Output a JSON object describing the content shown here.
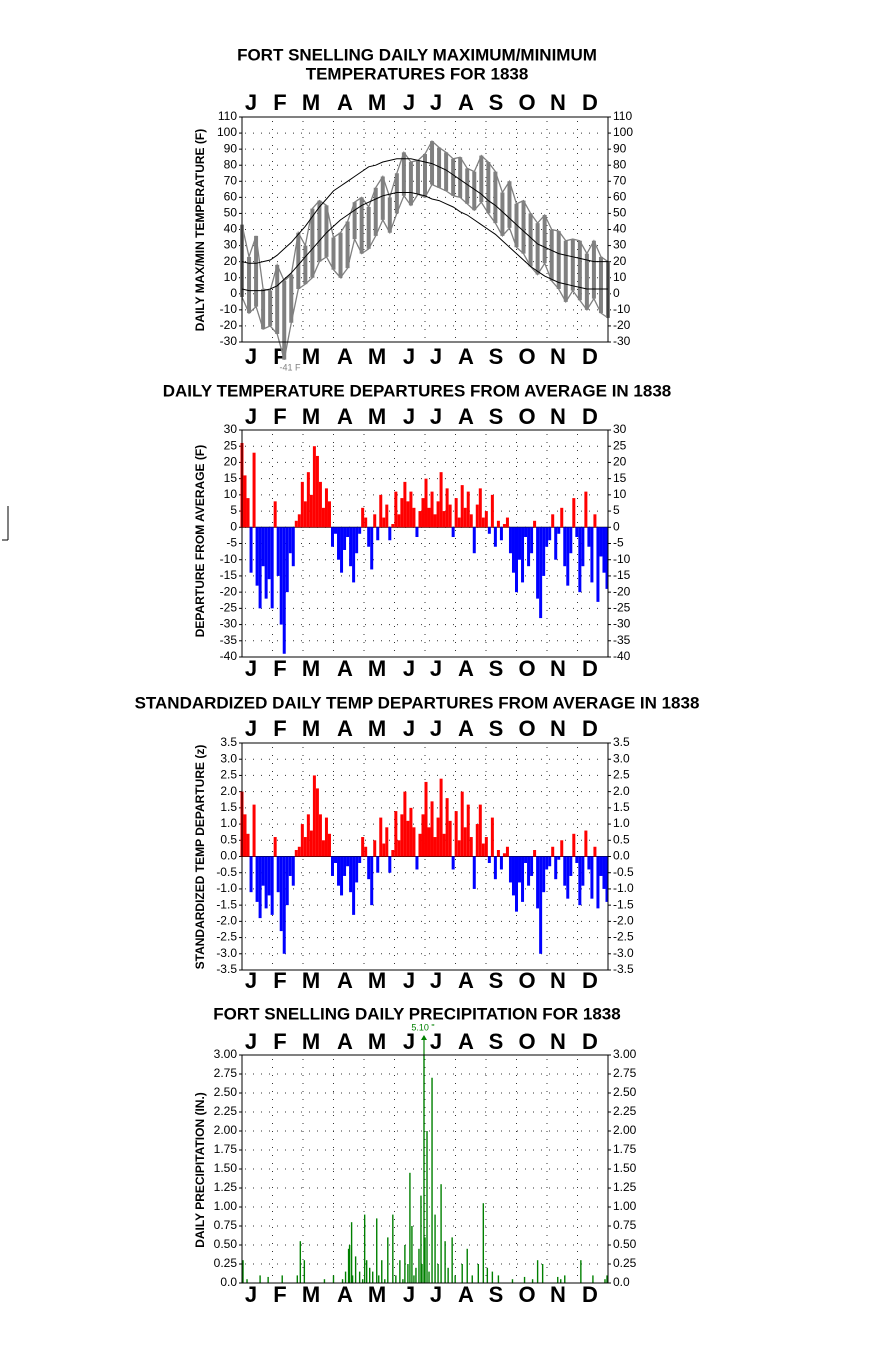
{
  "colors": {
    "temperature_range": "#808080",
    "normal_lines": "#000000",
    "positive_departure": "#ff0000",
    "negative_departure": "#0000ff",
    "precipitation": "#008000",
    "grid": "#333333"
  },
  "months": [
    "J",
    "F",
    "M",
    "A",
    "M",
    "J",
    "J",
    "A",
    "S",
    "O",
    "N",
    "D"
  ],
  "chart_data": [
    {
      "type": "area",
      "title": "FORT SNELLING DAILY MAXIMUM/MINIMUM\nTEMPERATURES FOR 1838",
      "ylabel": "DAILY MAX/MIN TEMPERATURE (F)",
      "y_ticks": [
        "110",
        "100",
        "90",
        "80",
        "70",
        "60",
        "50",
        "40",
        "30",
        "20",
        "10",
        "0",
        "-10",
        "-20",
        "-30"
      ],
      "ylim": [
        -30,
        110
      ],
      "x_unit": "day of year",
      "x": [
        1,
        8,
        15,
        22,
        29,
        36,
        43,
        50,
        57,
        64,
        71,
        78,
        85,
        92,
        99,
        106,
        113,
        120,
        127,
        134,
        141,
        148,
        155,
        162,
        169,
        176,
        183,
        190,
        197,
        204,
        211,
        218,
        225,
        232,
        239,
        246,
        253,
        260,
        267,
        274,
        281,
        288,
        295,
        302,
        309,
        316,
        323,
        330,
        337,
        344,
        351,
        358,
        365
      ],
      "series": [
        {
          "name": "Daily maximum",
          "values": [
            43,
            23,
            36,
            3,
            2,
            18,
            8,
            12,
            38,
            30,
            53,
            58,
            55,
            35,
            38,
            45,
            57,
            60,
            54,
            66,
            73,
            60,
            75,
            88,
            82,
            83,
            87,
            95,
            91,
            88,
            84,
            85,
            78,
            76,
            86,
            82,
            76,
            63,
            70,
            56,
            58,
            50,
            44,
            49,
            40,
            39,
            33,
            34,
            33,
            25,
            33,
            23,
            20
          ]
        },
        {
          "name": "Daily minimum",
          "values": [
            -2,
            -12,
            -8,
            -22,
            -20,
            -25,
            -41,
            -18,
            3,
            6,
            10,
            20,
            23,
            15,
            10,
            16,
            34,
            25,
            28,
            36,
            46,
            38,
            50,
            61,
            55,
            62,
            60,
            68,
            66,
            64,
            61,
            60,
            56,
            52,
            57,
            50,
            44,
            36,
            41,
            29,
            25,
            17,
            12,
            19,
            8,
            3,
            -5,
            2,
            -4,
            -10,
            -3,
            -12,
            -15
          ]
        },
        {
          "name": "Normal maximum",
          "values": [
            20,
            19,
            19,
            20,
            21,
            24,
            28,
            32,
            37,
            42,
            48,
            54,
            59,
            64,
            67,
            70,
            73,
            76,
            79,
            80,
            82,
            83,
            84,
            84,
            84,
            83,
            82,
            81,
            79,
            77,
            74,
            71,
            68,
            65,
            62,
            58,
            55,
            51,
            47,
            43,
            39,
            35,
            31,
            29,
            27,
            25,
            24,
            23,
            22,
            21,
            20,
            20,
            20
          ]
        },
        {
          "name": "Normal minimum",
          "values": [
            3,
            2,
            2,
            2,
            3,
            5,
            9,
            13,
            18,
            23,
            28,
            33,
            38,
            42,
            46,
            49,
            52,
            55,
            57,
            59,
            61,
            62,
            63,
            63,
            63,
            62,
            61,
            59,
            58,
            56,
            54,
            51,
            49,
            46,
            43,
            40,
            37,
            33,
            29,
            25,
            21,
            17,
            14,
            11,
            9,
            7,
            6,
            5,
            4,
            3,
            3,
            3,
            3
          ]
        }
      ],
      "annotations": [
        "-41 F"
      ]
    },
    {
      "type": "bar",
      "title": "DAILY TEMPERATURE DEPARTURES FROM AVERAGE IN 1838",
      "ylabel": "DEPARTURE FROM AVERAGE (F)",
      "y_ticks": [
        "30",
        "25",
        "20",
        "15",
        "10",
        "5",
        "0",
        "-5",
        "-10",
        "-15",
        "-20",
        "-25",
        "-30",
        "-35",
        "-40"
      ],
      "ylim": [
        -40,
        30
      ],
      "x_unit": "day of year",
      "x": [
        1,
        4,
        7,
        10,
        13,
        16,
        19,
        22,
        25,
        28,
        31,
        34,
        37,
        40,
        43,
        46,
        49,
        52,
        55,
        58,
        61,
        64,
        67,
        70,
        73,
        76,
        79,
        82,
        85,
        88,
        91,
        94,
        97,
        100,
        103,
        106,
        109,
        112,
        115,
        118,
        121,
        124,
        127,
        130,
        133,
        136,
        139,
        142,
        145,
        148,
        151,
        154,
        157,
        160,
        163,
        166,
        169,
        172,
        175,
        178,
        181,
        184,
        187,
        190,
        193,
        196,
        199,
        202,
        205,
        208,
        211,
        214,
        217,
        220,
        223,
        226,
        229,
        232,
        235,
        238,
        241,
        244,
        247,
        250,
        253,
        256,
        259,
        262,
        265,
        268,
        271,
        274,
        277,
        280,
        283,
        286,
        289,
        292,
        295,
        298,
        301,
        304,
        307,
        310,
        313,
        316,
        319,
        322,
        325,
        328,
        331,
        334,
        337,
        340,
        343,
        346,
        349,
        352,
        355,
        358,
        361,
        364
      ],
      "values": [
        26,
        16,
        9,
        -14,
        23,
        -18,
        -25,
        -12,
        -22,
        -16,
        -25,
        8,
        -15,
        -30,
        -39,
        -20,
        -8,
        -12,
        2,
        4,
        14,
        8,
        17,
        10,
        25,
        22,
        14,
        6,
        12,
        8,
        -6,
        -2,
        -10,
        -14,
        -7,
        -3,
        -12,
        -17,
        -8,
        -2,
        6,
        3,
        -6,
        -13,
        4,
        -4,
        10,
        3,
        7,
        -4,
        1,
        11,
        4,
        9,
        14,
        8,
        11,
        6,
        -3,
        5,
        9,
        15,
        6,
        11,
        4,
        8,
        17,
        5,
        12,
        7,
        -3,
        9,
        3,
        13,
        6,
        11,
        4,
        -8,
        7,
        12,
        3,
        5,
        -2,
        10,
        -6,
        2,
        -4,
        1,
        3,
        -8,
        -14,
        -20,
        -10,
        -17,
        -3,
        -12,
        -8,
        2,
        -22,
        -28,
        -15,
        -6,
        -4,
        4,
        -10,
        -2,
        6,
        -12,
        -18,
        -8,
        9,
        -3,
        -20,
        -12,
        11,
        -6,
        -17,
        4,
        -23,
        -9,
        -14,
        -19
      ]
    },
    {
      "type": "bar",
      "title": "STANDARDIZED DAILY TEMP DEPARTURES FROM AVERAGE IN 1838",
      "ylabel": "STANDARDIZED TEMP DEPARTURE (z)",
      "y_ticks": [
        "3.5",
        "3.0",
        "2.5",
        "2.0",
        "1.5",
        "1.0",
        "0.5",
        "0.0",
        "-0.5",
        "-1.0",
        "-1.5",
        "-2.0",
        "-2.5",
        "-3.0",
        "-3.5"
      ],
      "ylim": [
        -3.5,
        3.5
      ],
      "x_unit": "day of year",
      "x": [
        1,
        4,
        7,
        10,
        13,
        16,
        19,
        22,
        25,
        28,
        31,
        34,
        37,
        40,
        43,
        46,
        49,
        52,
        55,
        58,
        61,
        64,
        67,
        70,
        73,
        76,
        79,
        82,
        85,
        88,
        91,
        94,
        97,
        100,
        103,
        106,
        109,
        112,
        115,
        118,
        121,
        124,
        127,
        130,
        133,
        136,
        139,
        142,
        145,
        148,
        151,
        154,
        157,
        160,
        163,
        166,
        169,
        172,
        175,
        178,
        181,
        184,
        187,
        190,
        193,
        196,
        199,
        202,
        205,
        208,
        211,
        214,
        217,
        220,
        223,
        226,
        229,
        232,
        235,
        238,
        241,
        244,
        247,
        250,
        253,
        256,
        259,
        262,
        265,
        268,
        271,
        274,
        277,
        280,
        283,
        286,
        289,
        292,
        295,
        298,
        301,
        304,
        307,
        310,
        313,
        316,
        319,
        322,
        325,
        328,
        331,
        334,
        337,
        340,
        343,
        346,
        349,
        352,
        355,
        358,
        361,
        364
      ],
      "values": [
        2.0,
        1.3,
        0.7,
        -1.1,
        1.6,
        -1.4,
        -1.9,
        -0.9,
        -1.6,
        -1.2,
        -1.8,
        0.6,
        -1.1,
        -2.3,
        -3.0,
        -1.5,
        -0.6,
        -0.9,
        0.2,
        0.3,
        1.0,
        0.6,
        1.3,
        0.8,
        2.5,
        2.1,
        1.3,
        0.5,
        1.2,
        0.7,
        -0.6,
        -0.2,
        -0.9,
        -1.2,
        -0.6,
        -0.3,
        -1.1,
        -1.8,
        -0.8,
        -0.2,
        0.6,
        0.3,
        -0.7,
        -1.5,
        0.5,
        -0.5,
        1.2,
        0.4,
        0.9,
        -0.5,
        0.2,
        1.4,
        0.5,
        1.3,
        2.0,
        1.1,
        1.5,
        0.9,
        -0.4,
        0.7,
        1.3,
        2.3,
        0.9,
        1.7,
        0.6,
        1.2,
        2.4,
        0.7,
        1.8,
        1.1,
        -0.4,
        1.4,
        0.5,
        2.0,
        0.9,
        1.6,
        0.6,
        -1.0,
        1.0,
        1.6,
        0.4,
        0.6,
        -0.2,
        1.2,
        -0.7,
        0.2,
        -0.4,
        0.1,
        0.3,
        -0.8,
        -1.2,
        -1.7,
        -0.8,
        -1.4,
        -0.2,
        -0.9,
        -0.6,
        0.2,
        -1.6,
        -3.0,
        -1.1,
        -0.4,
        -0.3,
        0.3,
        -0.7,
        -0.1,
        0.5,
        -0.9,
        -1.3,
        -0.6,
        0.7,
        -0.2,
        -1.5,
        -0.9,
        0.8,
        -0.4,
        -1.3,
        0.3,
        -1.6,
        -0.6,
        -1.0,
        -1.4
      ]
    },
    {
      "type": "bar",
      "title": "FORT SNELLING DAILY PRECIPITATION FOR 1838",
      "ylabel": "DAILY PRECIPITATION (IN.)",
      "y_ticks": [
        "3.00",
        "2.75",
        "2.50",
        "2.25",
        "2.00",
        "1.75",
        "1.50",
        "1.25",
        "1.00",
        "0.75",
        "0.50",
        "0.25",
        "0.0"
      ],
      "ylim": [
        0,
        3.0
      ],
      "x_unit": "day of year",
      "x": [
        2,
        6,
        19,
        27,
        41,
        56,
        59,
        63,
        83,
        92,
        101,
        104,
        107,
        108,
        110,
        111,
        114,
        118,
        121,
        123,
        125,
        128,
        131,
        135,
        137,
        140,
        143,
        146,
        151,
        154,
        158,
        161,
        163,
        166,
        168,
        170,
        172,
        174,
        177,
        179,
        180,
        182,
        183,
        185,
        187,
        190,
        193,
        196,
        199,
        203,
        206,
        210,
        213,
        220,
        225,
        230,
        236,
        241,
        245,
        250,
        256,
        270,
        282,
        290,
        295,
        300,
        315,
        318,
        322,
        338,
        350,
        362,
        364
      ],
      "values": [
        0.3,
        0.05,
        0.1,
        0.08,
        0.1,
        0.1,
        0.55,
        0.3,
        0.05,
        0.1,
        0.05,
        0.15,
        0.45,
        0.5,
        0.8,
        0.1,
        0.35,
        0.15,
        0.05,
        0.9,
        0.3,
        0.2,
        0.15,
        0.85,
        0.1,
        0.3,
        0.05,
        0.6,
        0.9,
        0.1,
        0.3,
        0.05,
        0.5,
        0.25,
        1.45,
        0.75,
        0.1,
        0.2,
        0.45,
        1.15,
        0.25,
        3.0,
        0.6,
        2.0,
        0.15,
        2.7,
        0.9,
        0.25,
        1.3,
        0.55,
        0.2,
        0.6,
        0.1,
        0.25,
        0.45,
        0.1,
        0.25,
        1.05,
        0.2,
        0.15,
        0.1,
        0.05,
        0.08,
        0.05,
        0.3,
        0.25,
        0.08,
        0.05,
        0.1,
        0.3,
        0.1,
        0.05,
        0.1
      ],
      "annotations": [
        "5.10 \""
      ]
    }
  ]
}
